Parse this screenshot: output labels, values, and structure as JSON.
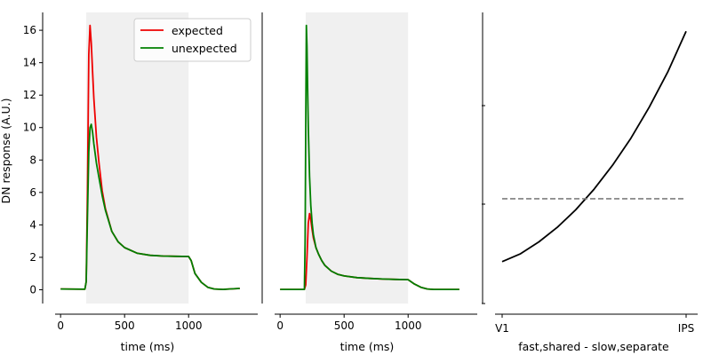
{
  "colors": {
    "expected": "#ee0000",
    "unexpected": "#008000",
    "shade": "#f0f0f0",
    "curve": "#000000",
    "baseline": "#7f7f7f"
  },
  "chart_data": [
    {
      "type": "line",
      "xlabel": "time (ms)",
      "ylabel": "DN response (A.U.)",
      "xlim": [
        -140,
        1540
      ],
      "ylim": [
        -0.85,
        17.1
      ],
      "xticks": [
        0,
        500,
        1000
      ],
      "yticks": [
        0,
        2,
        4,
        6,
        8,
        10,
        12,
        14,
        16
      ],
      "shaded_interval": [
        200,
        1000
      ],
      "legend": {
        "placement": "top-right",
        "entries": [
          "expected",
          "unexpected"
        ]
      },
      "series": [
        {
          "name": "expected",
          "color": "#ee0000",
          "x": [
            0,
            190,
            200,
            210,
            220,
            230,
            240,
            250,
            260,
            280,
            300,
            325,
            350,
            400,
            450,
            500,
            600,
            700,
            800,
            900,
            1000,
            1020,
            1050,
            1100,
            1150,
            1200,
            1270,
            1320,
            1400
          ],
          "y": [
            0.05,
            0.03,
            0.5,
            6.0,
            14.5,
            16.3,
            15.2,
            13.4,
            11.8,
            9.4,
            7.8,
            6.1,
            5.0,
            3.6,
            2.95,
            2.6,
            2.25,
            2.12,
            2.08,
            2.06,
            2.05,
            1.8,
            1.0,
            0.45,
            0.15,
            0.05,
            0.02,
            0.05,
            0.08
          ]
        },
        {
          "name": "unexpected",
          "color": "#008000",
          "x": [
            0,
            190,
            200,
            210,
            220,
            230,
            240,
            250,
            260,
            280,
            300,
            325,
            350,
            400,
            450,
            500,
            600,
            700,
            800,
            900,
            1000,
            1020,
            1050,
            1100,
            1150,
            1200,
            1270,
            1320,
            1400
          ],
          "y": [
            0.05,
            0.03,
            0.5,
            4.5,
            8.5,
            10.0,
            10.2,
            9.7,
            9.0,
            7.8,
            6.9,
            5.8,
            4.9,
            3.6,
            2.95,
            2.6,
            2.25,
            2.12,
            2.08,
            2.06,
            2.05,
            1.8,
            1.0,
            0.45,
            0.15,
            0.05,
            0.02,
            0.05,
            0.08
          ]
        }
      ]
    },
    {
      "type": "line",
      "xlabel": "time (ms)",
      "ylabel": "",
      "xlim": [
        -140,
        1540
      ],
      "ylim": [
        -0.85,
        17.1
      ],
      "xticks": [
        0,
        500,
        1000
      ],
      "shaded_interval": [
        200,
        1000
      ],
      "series": [
        {
          "name": "expected",
          "color": "#ee0000",
          "x": [
            0,
            190,
            200,
            210,
            220,
            230,
            240,
            250,
            260,
            280,
            300,
            325,
            350,
            400,
            450,
            500,
            600,
            700,
            800,
            900,
            1000,
            1050,
            1100,
            1150,
            1200,
            1300,
            1400
          ],
          "y": [
            0.02,
            0.02,
            0.3,
            2.0,
            4.1,
            4.7,
            4.3,
            3.7,
            3.2,
            2.6,
            2.2,
            1.8,
            1.5,
            1.15,
            0.95,
            0.85,
            0.75,
            0.7,
            0.66,
            0.64,
            0.62,
            0.35,
            0.15,
            0.05,
            0.02,
            0.02,
            0.02
          ]
        },
        {
          "name": "unexpected",
          "color": "#008000",
          "x": [
            0,
            190,
            195,
            200,
            205,
            210,
            215,
            220,
            230,
            240,
            250,
            260,
            280,
            300,
            325,
            350,
            400,
            450,
            500,
            600,
            700,
            800,
            900,
            1000,
            1050,
            1100,
            1150,
            1200,
            1300,
            1400
          ],
          "y": [
            0.02,
            0.02,
            3.0,
            10.0,
            16.3,
            15.0,
            12.5,
            10.0,
            7.0,
            5.2,
            4.1,
            3.4,
            2.6,
            2.2,
            1.8,
            1.5,
            1.15,
            0.95,
            0.85,
            0.75,
            0.7,
            0.66,
            0.64,
            0.62,
            0.35,
            0.15,
            0.05,
            0.02,
            0.02,
            0.02
          ]
        }
      ]
    },
    {
      "type": "line",
      "xlabel": "fast,shared - slow,separate",
      "ylabel": "",
      "x_tick_labels": [
        "V1",
        "IPS"
      ],
      "xlim": [
        -0.04,
        1.05
      ],
      "ylim": [
        0,
        1
      ],
      "series": [
        {
          "name": "",
          "color": "#000000",
          "x": [
            0,
            0.1,
            0.2,
            0.3,
            0.4,
            0.5,
            0.6,
            0.7,
            0.8,
            0.9,
            1.0
          ],
          "y": [
            0.144,
            0.171,
            0.212,
            0.262,
            0.322,
            0.393,
            0.475,
            0.568,
            0.675,
            0.795,
            0.935
          ]
        },
        {
          "name": "",
          "color": "#7f7f7f",
          "style": "dashed",
          "x": [
            0,
            1.0
          ],
          "y": [
            0.36,
            0.36
          ]
        }
      ]
    }
  ]
}
